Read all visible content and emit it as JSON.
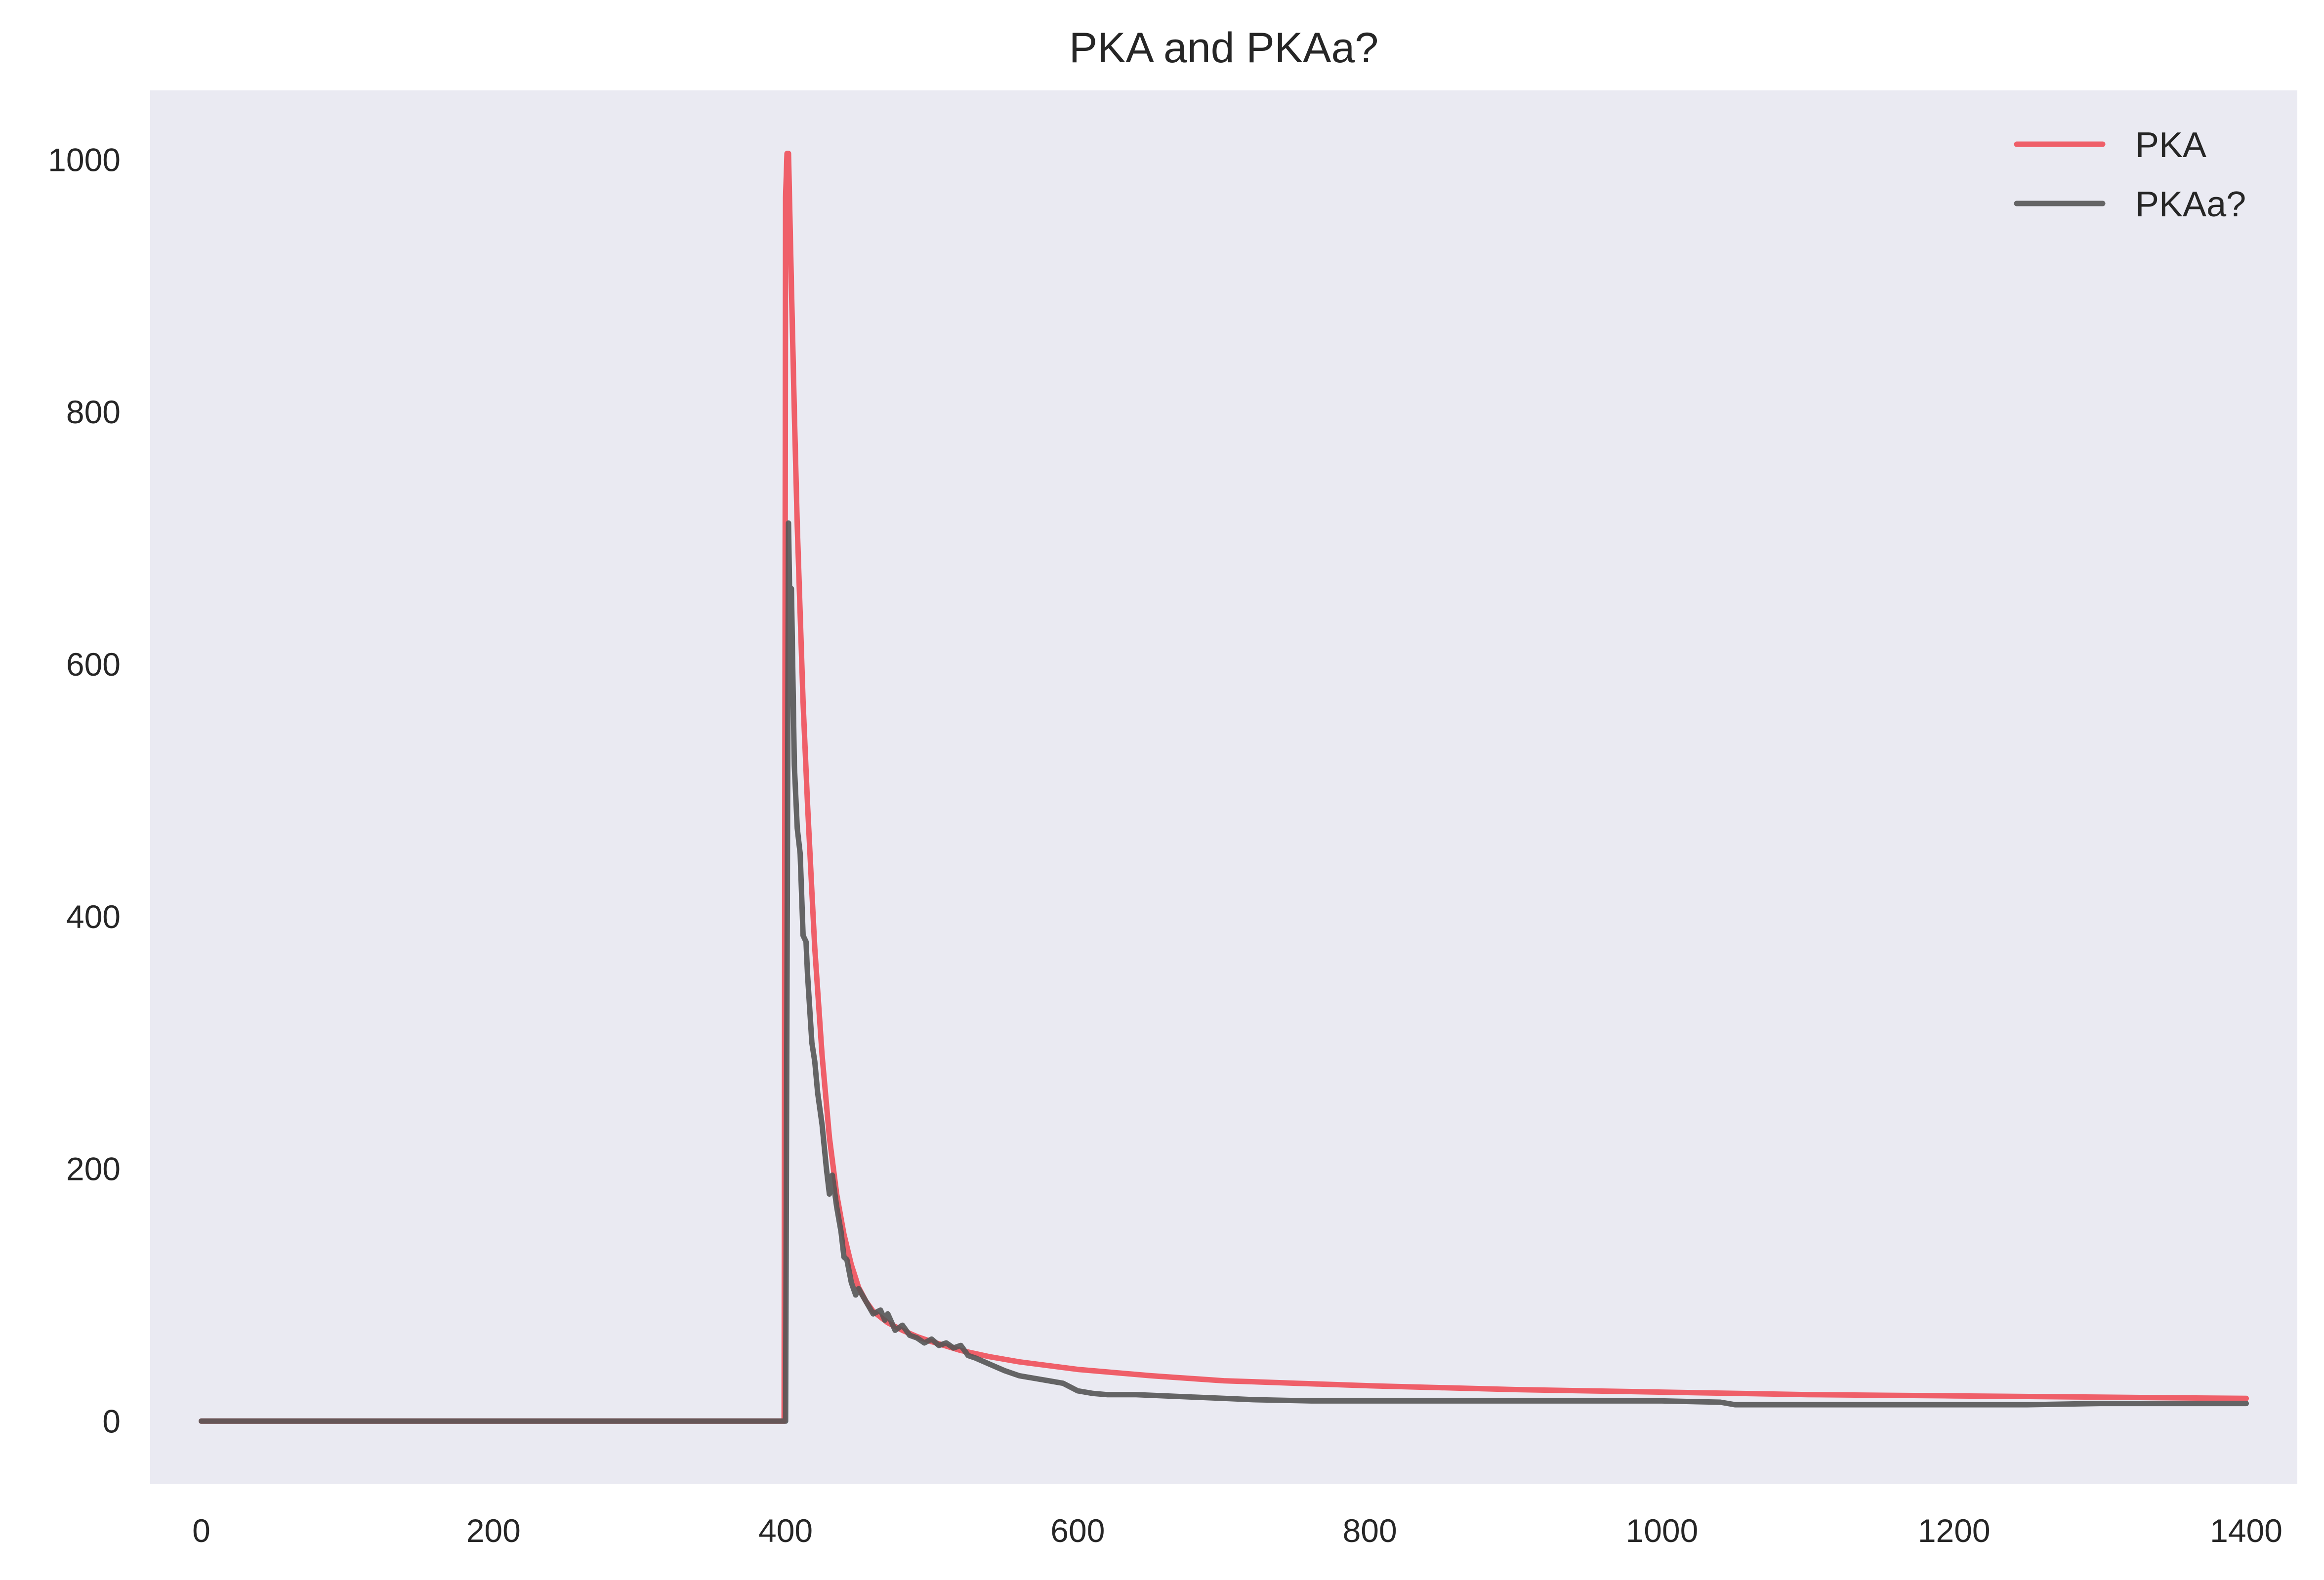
{
  "chart_data": {
    "type": "line",
    "title": "PKA and PKAa?",
    "xlabel": "",
    "ylabel": "",
    "xlim": [
      -35,
      1435
    ],
    "ylim": [
      -50,
      1055
    ],
    "xticks": [
      0,
      200,
      400,
      600,
      800,
      1000,
      1200,
      1400
    ],
    "yticks": [
      0,
      200,
      400,
      600,
      800,
      1000
    ],
    "grid": false,
    "background": "#eaeaf2",
    "legend_position": "top-right",
    "series": [
      {
        "name": "PKA",
        "color": "#f0505a",
        "x": [
          0,
          399,
          400,
          401,
          402,
          404,
          406,
          408,
          410,
          412,
          415,
          418,
          420,
          425,
          430,
          435,
          440,
          445,
          450,
          455,
          460,
          470,
          480,
          490,
          500,
          520,
          540,
          560,
          580,
          600,
          650,
          700,
          750,
          800,
          900,
          1000,
          1100,
          1200,
          1300,
          1400
        ],
        "y": [
          0,
          0,
          970,
          1005,
          1005,
          900,
          800,
          710,
          640,
          570,
          490,
          420,
          375,
          290,
          225,
          180,
          148,
          124,
          106,
          95,
          87,
          78,
          72,
          67,
          63,
          56,
          51,
          47,
          44,
          41,
          36,
          32,
          30,
          28,
          25,
          23,
          21,
          20,
          19,
          18
        ]
      },
      {
        "name": "PKAa?",
        "color": "#555555",
        "x": [
          0,
          399,
          400,
          402,
          403,
          404,
          406,
          408,
          410,
          412,
          414,
          415,
          418,
          420,
          422,
          425,
          428,
          430,
          432,
          435,
          438,
          440,
          442,
          445,
          448,
          450,
          455,
          460,
          465,
          468,
          470,
          475,
          480,
          485,
          490,
          495,
          500,
          505,
          510,
          515,
          520,
          525,
          530,
          540,
          550,
          560,
          570,
          580,
          590,
          600,
          610,
          620,
          640,
          660,
          680,
          700,
          720,
          760,
          800,
          850,
          900,
          950,
          1000,
          1040,
          1050,
          1100,
          1150,
          1200,
          1250,
          1300,
          1350,
          1400
        ],
        "y": [
          0,
          0,
          0,
          712,
          640,
          660,
          520,
          470,
          450,
          385,
          380,
          355,
          300,
          285,
          260,
          235,
          200,
          180,
          195,
          170,
          150,
          130,
          128,
          110,
          100,
          105,
          95,
          85,
          88,
          80,
          85,
          72,
          76,
          68,
          66,
          62,
          65,
          60,
          62,
          58,
          60,
          52,
          50,
          45,
          40,
          36,
          34,
          32,
          30,
          24,
          22,
          21,
          21,
          20,
          19,
          18,
          17,
          16,
          16,
          16,
          16,
          16,
          16,
          15,
          13,
          13,
          13,
          13,
          13,
          14,
          14,
          14
        ]
      }
    ]
  }
}
